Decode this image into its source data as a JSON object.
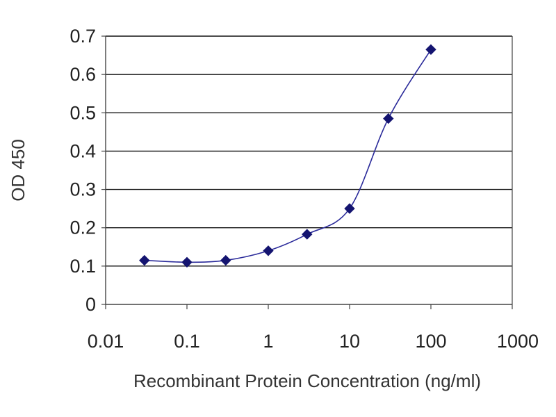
{
  "chart_data": {
    "type": "scatter",
    "xscale": "log",
    "xlabel": "Recombinant Protein Concentration (ng/ml)",
    "ylabel": "OD 450",
    "xlim": [
      0.01,
      1000
    ],
    "ylim": [
      0,
      0.7
    ],
    "xticks": [
      0.01,
      0.1,
      1,
      10,
      100,
      1000
    ],
    "xtick_labels": [
      "0.01",
      "0.1",
      "1",
      "10",
      "100",
      "1000"
    ],
    "yticks": [
      0,
      0.1,
      0.2,
      0.3,
      0.4,
      0.5,
      0.6,
      0.7
    ],
    "ytick_labels": [
      "0",
      "0.1",
      "0.2",
      "0.3",
      "0.4",
      "0.5",
      "0.6",
      "0.7"
    ],
    "grid": "horizontal",
    "legend": "none",
    "series": [
      {
        "x": [
          0.03,
          0.1,
          0.3,
          1,
          3,
          10,
          30,
          100
        ],
        "y": [
          0.115,
          0.11,
          0.115,
          0.14,
          0.183,
          0.25,
          0.485,
          0.665
        ],
        "color": "#1a1a8c",
        "line": "smooth"
      }
    ],
    "colors": {
      "grid": "#111111",
      "axis": "#444444",
      "marker": "#141470",
      "line": "#2a2a9a"
    }
  }
}
